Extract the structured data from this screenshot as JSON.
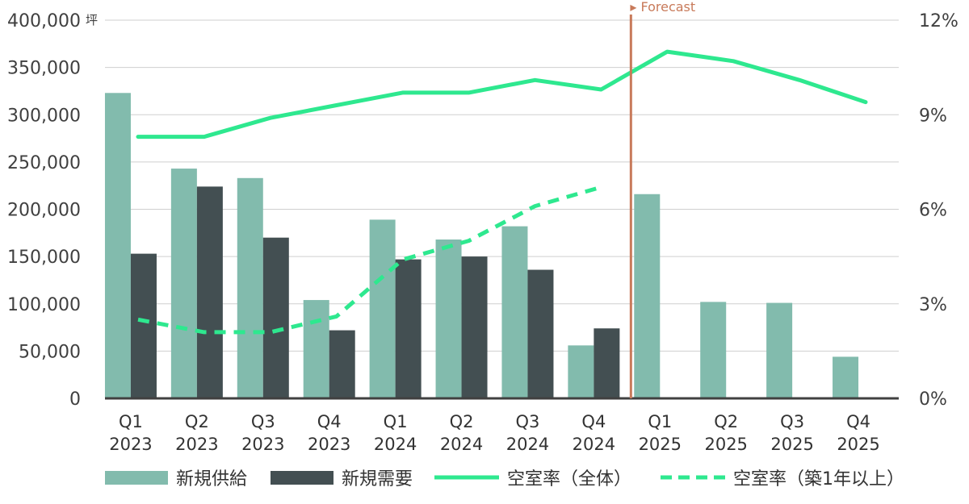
{
  "chart_data": {
    "type": "bar",
    "unit_label": "坪",
    "categories": [
      {
        "q": "Q1",
        "y": "2023"
      },
      {
        "q": "Q2",
        "y": "2023"
      },
      {
        "q": "Q3",
        "y": "2023"
      },
      {
        "q": "Q4",
        "y": "2023"
      },
      {
        "q": "Q1",
        "y": "2024"
      },
      {
        "q": "Q2",
        "y": "2024"
      },
      {
        "q": "Q3",
        "y": "2024"
      },
      {
        "q": "Q4",
        "y": "2024"
      },
      {
        "q": "Q1",
        "y": "2025"
      },
      {
        "q": "Q2",
        "y": "2025"
      },
      {
        "q": "Q3",
        "y": "2025"
      },
      {
        "q": "Q4",
        "y": "2025"
      }
    ],
    "left_axis": {
      "ylim": [
        0,
        400000
      ],
      "ticks": [
        0,
        50000,
        100000,
        150000,
        200000,
        250000,
        300000,
        350000,
        400000
      ],
      "tick_labels": [
        "0",
        "50,000",
        "100,000",
        "150,000",
        "200,000",
        "250,000",
        "300,000",
        "350,000",
        "400,000"
      ]
    },
    "right_axis": {
      "ylim": [
        0,
        12
      ],
      "ticks": [
        0,
        3,
        6,
        9,
        12
      ],
      "tick_labels": [
        "0%",
        "3%",
        "6%",
        "9%",
        "12%"
      ]
    },
    "bar_series": [
      {
        "name": "新規供給",
        "color": "#82bbad",
        "values": [
          323000,
          243000,
          233000,
          104000,
          189000,
          168000,
          182000,
          56000,
          216000,
          102000,
          101000,
          44000
        ]
      },
      {
        "name": "新規需要",
        "color": "#434f52",
        "values": [
          153000,
          224000,
          170000,
          72000,
          147000,
          150000,
          136000,
          74000,
          null,
          null,
          null,
          null
        ]
      }
    ],
    "line_series": [
      {
        "name": "空室率（全体）",
        "color": "#2ee88f",
        "style": "solid",
        "axis": "right",
        "values": [
          8.3,
          8.3,
          8.9,
          9.3,
          9.7,
          9.7,
          10.1,
          9.8,
          11.0,
          10.7,
          10.1,
          9.4
        ]
      },
      {
        "name": "空室率（築1年以上）",
        "color": "#2ee88f",
        "style": "dashed",
        "axis": "right",
        "values": [
          2.5,
          2.1,
          2.1,
          2.6,
          4.4,
          5.0,
          6.1,
          6.7,
          null,
          null,
          null,
          null
        ]
      }
    ],
    "forecast_marker": {
      "label": "▸ Forecast",
      "color": "#c87a5a",
      "between_categories": [
        7,
        8
      ]
    },
    "grid": true,
    "legend_position": "bottom"
  }
}
